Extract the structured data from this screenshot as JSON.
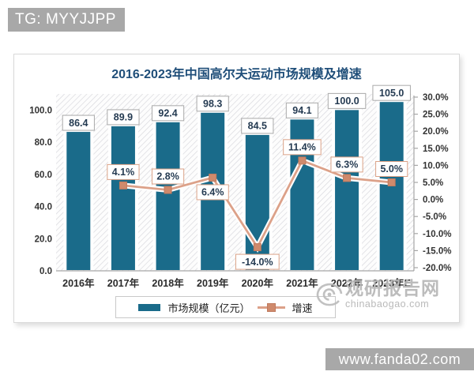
{
  "page": {
    "tg_label": "TG: MYYJJPP",
    "site_label": "www.fanda02.com"
  },
  "watermark": {
    "brand": "观研报告网",
    "domain": "chinabaogao.com"
  },
  "colors": {
    "bar": "#1a6b8a",
    "line": "#dca189",
    "marker_fill": "#cf8a6c",
    "marker_stroke": "#c07a5e",
    "title": "#1f4e79",
    "axis_text": "#333333",
    "axis_line": "#a6a6a6",
    "bar_label_box_border": "#a9a9a9",
    "line_label_box_border": "#dba287",
    "label_text": "#253b52",
    "hatch_line": "#d9d9de",
    "badge_gray": "#a8a8a8"
  },
  "chart_data": {
    "type": "bar+line",
    "title": "2016-2023年中国高尔夫运动市场规模及增速",
    "categories": [
      "2016年",
      "2017年",
      "2018年",
      "2019年",
      "2020年",
      "2021年",
      "2022年",
      "2023年E"
    ],
    "series": [
      {
        "name": "市场规模（亿元）",
        "render": "bar",
        "axis": "left",
        "values": [
          86.4,
          89.9,
          92.4,
          98.3,
          84.5,
          94.1,
          100.0,
          105.0
        ],
        "labels": [
          "86.4",
          "89.9",
          "92.4",
          "98.3",
          "84.5",
          "94.1",
          "100.0",
          "105.0"
        ]
      },
      {
        "name": "增速",
        "render": "line",
        "axis": "right",
        "values": [
          null,
          4.1,
          2.8,
          6.4,
          -14.0,
          11.4,
          6.3,
          5.0
        ],
        "labels": [
          null,
          "4.1%",
          "2.8%",
          "6.4%",
          "-14.0%",
          "11.4%",
          "6.3%",
          "5.0%"
        ],
        "label_pos": [
          null,
          "above",
          "above",
          "below",
          "below",
          "above",
          "above",
          "above"
        ]
      }
    ],
    "left_axis": {
      "min": 0,
      "max": 110,
      "ticks": [
        "100.0",
        "80.0",
        "60.0",
        "40.0",
        "20.0",
        "0.0"
      ]
    },
    "right_axis": {
      "min": -20,
      "max": 30,
      "ticks": [
        "30.0%",
        "25.0%",
        "20.0%",
        "15.0%",
        "10.0%",
        "5.0%",
        "0.0%",
        "-5.0%",
        "-10.0%",
        "-15.0%",
        "-20.0%"
      ]
    },
    "legend_position": "bottom",
    "grid": false,
    "plot_background": "diagonal-hatch"
  }
}
